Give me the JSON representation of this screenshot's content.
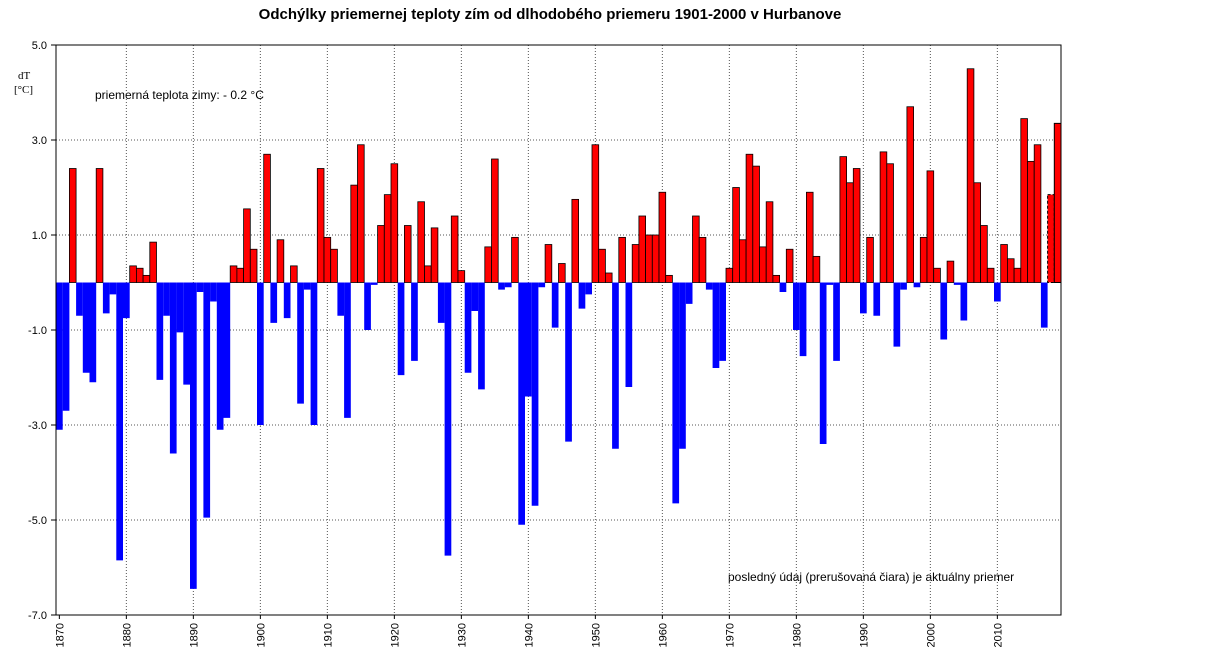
{
  "chart_data": {
    "type": "bar",
    "title": "Odchýlky priemernej teploty zím od dlhodobého priemeru 1901-2000 v Hurbanove",
    "ylabel_line1": "dT",
    "ylabel_line2": "[°C]",
    "annotation_mean": "priemerná teplota zimy: - 0.2 °C",
    "annotation_last": "posledný údaj (prerušovaná čiara) je aktuálny priemer",
    "ylim": [
      -7,
      5
    ],
    "yticks": [
      5,
      3,
      1,
      -1,
      -3,
      -5,
      -7
    ],
    "ytick_labels": [
      "5.0",
      "3.0",
      "1.0",
      "-1.0",
      "-3.0",
      "-5.0",
      "-7.0"
    ],
    "xticks": [
      1870,
      1880,
      1890,
      1900,
      1910,
      1920,
      1930,
      1940,
      1950,
      1960,
      1970,
      1980,
      1990,
      2000,
      2010
    ],
    "grid": true,
    "positive_color": "#ff0000",
    "negative_color": "#0000ff",
    "x": [
      1870,
      1871,
      1872,
      1873,
      1874,
      1875,
      1876,
      1877,
      1878,
      1879,
      1880,
      1881,
      1882,
      1883,
      1884,
      1885,
      1886,
      1887,
      1888,
      1889,
      1890,
      1891,
      1892,
      1893,
      1894,
      1895,
      1896,
      1897,
      1898,
      1899,
      1900,
      1901,
      1902,
      1903,
      1904,
      1905,
      1906,
      1907,
      1908,
      1909,
      1910,
      1911,
      1912,
      1913,
      1914,
      1915,
      1916,
      1917,
      1918,
      1919,
      1920,
      1921,
      1922,
      1923,
      1924,
      1925,
      1926,
      1927,
      1928,
      1929,
      1930,
      1931,
      1932,
      1933,
      1934,
      1935,
      1936,
      1937,
      1938,
      1939,
      1940,
      1941,
      1942,
      1943,
      1944,
      1945,
      1946,
      1947,
      1948,
      1949,
      1950,
      1951,
      1952,
      1953,
      1954,
      1955,
      1956,
      1957,
      1958,
      1959,
      1960,
      1961,
      1962,
      1963,
      1964,
      1965,
      1966,
      1967,
      1968,
      1969,
      1970,
      1971,
      1972,
      1973,
      1974,
      1975,
      1976,
      1977,
      1978,
      1979,
      1980,
      1981,
      1982,
      1983,
      1984,
      1985,
      1986,
      1987,
      1988,
      1989,
      1990,
      1991,
      1992,
      1993,
      1994,
      1995,
      1996,
      1997,
      1998,
      1999,
      2000,
      2001,
      2002,
      2003,
      2004,
      2005,
      2006,
      2007,
      2008,
      2009,
      2010,
      2011,
      2012,
      2013,
      2014,
      2015,
      2016,
      2017,
      2018,
      2019
    ],
    "values": [
      -3.1,
      -2.7,
      2.4,
      -0.7,
      -1.9,
      -2.1,
      2.4,
      -0.65,
      -0.25,
      -5.85,
      -0.75,
      0.35,
      0.3,
      0.15,
      0.85,
      -2.05,
      -0.7,
      -3.6,
      -1.05,
      -2.15,
      -6.45,
      -0.2,
      -4.95,
      -0.4,
      -3.1,
      -2.85,
      0.35,
      0.3,
      1.55,
      0.7,
      -3.0,
      2.7,
      -0.85,
      0.9,
      -0.75,
      0.35,
      -2.55,
      -0.15,
      -3.0,
      2.4,
      0.95,
      0.7,
      -0.7,
      -2.85,
      2.05,
      2.9,
      -1.0,
      -0.05,
      1.2,
      1.85,
      2.5,
      -1.95,
      1.2,
      -1.65,
      1.7,
      0.35,
      1.15,
      -0.85,
      -5.75,
      1.4,
      0.25,
      -1.9,
      -0.6,
      -2.25,
      0.75,
      2.6,
      -0.15,
      -0.1,
      0.95,
      -5.1,
      -2.4,
      -4.7,
      -0.1,
      0.8,
      -0.95,
      0.4,
      -3.35,
      1.75,
      -0.55,
      -0.25,
      2.9,
      0.7,
      0.2,
      -3.5,
      0.95,
      -2.2,
      0.8,
      1.4,
      1.0,
      1.0,
      1.9,
      0.15,
      -4.65,
      -3.5,
      -0.45,
      1.4,
      0.95,
      -0.15,
      -1.8,
      -1.65,
      0.3,
      2.0,
      0.9,
      2.7,
      2.45,
      0.75,
      1.7,
      0.15,
      -0.2,
      0.7,
      -1.0,
      -1.55,
      1.9,
      0.55,
      -3.4,
      -0.05,
      -1.65,
      2.65,
      2.1,
      2.4,
      -0.65,
      0.95,
      -0.7,
      2.75,
      2.5,
      -1.35,
      -0.15,
      3.7,
      -0.1,
      0.95,
      2.35,
      0.3,
      -1.2,
      0.45,
      -0.05,
      -0.8,
      4.5,
      2.1,
      1.2,
      0.3,
      -0.4,
      0.8,
      0.5,
      0.3,
      3.45,
      2.55,
      2.9,
      -0.95,
      1.85,
      3.35
    ]
  }
}
